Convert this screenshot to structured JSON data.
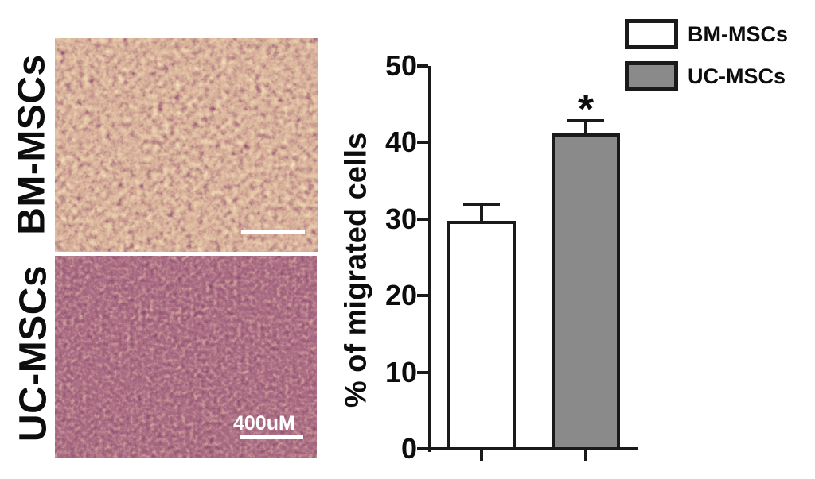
{
  "micrograph_panel": {
    "images": [
      {
        "label": "BM-MSCs",
        "scale_bar_label": ""
      },
      {
        "label": "UC-MSCs",
        "scale_bar_label": "400uM"
      }
    ],
    "texture_colors": {
      "dark_purple": "#2d0b1e",
      "purple": "#5a1a33",
      "pink_brown": "#9e614d",
      "tan": "#d9b87a",
      "cream": "#eed9a0"
    }
  },
  "chart_data": {
    "type": "bar",
    "categories": [
      "BM-MSCs",
      "UC-MSCs"
    ],
    "values": [
      29.8,
      41.2
    ],
    "errors": [
      2.2,
      1.6
    ],
    "significance": [
      "",
      "*"
    ],
    "bar_colors": [
      "#ffffff",
      "#8a8a8a"
    ],
    "bar_border_color": "#1a1a1a",
    "title": "",
    "xlabel": "",
    "ylabel": "% of migrated cells",
    "ylim": [
      0,
      50
    ],
    "yticks": [
      0,
      10,
      20,
      30,
      40,
      50
    ],
    "x_tick_labels": [
      "",
      ""
    ],
    "grid": false,
    "legend": {
      "position": "top-right",
      "entries": [
        {
          "label": "BM-MSCs",
          "color": "#ffffff"
        },
        {
          "label": "UC-MSCs",
          "color": "#8a8a8a"
        }
      ]
    }
  }
}
